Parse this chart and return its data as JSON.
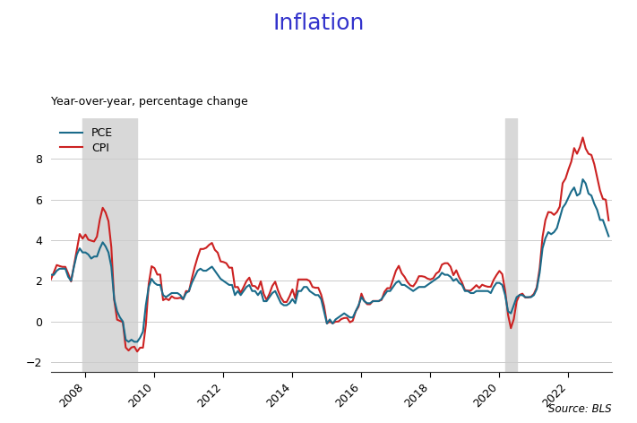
{
  "title": "Inflation",
  "subtitle": "Year-over-year, percentage change",
  "source": "Source: BLS",
  "title_color": "#3333cc",
  "recession1_start": 2007.917,
  "recession1_end": 2009.5,
  "recession2_start": 2020.167,
  "recession2_end": 2020.5,
  "ylim": [
    -2.5,
    10.0
  ],
  "yticks": [
    -2,
    0,
    2,
    4,
    6,
    8
  ],
  "pce_color": "#1a6b8a",
  "cpi_color": "#cc2222",
  "legend_labels": [
    "PCE",
    "CPI"
  ],
  "xticks": [
    2008,
    2010,
    2012,
    2014,
    2016,
    2018,
    2020,
    2022
  ],
  "xmin": 2007.0,
  "xmax": 2023.25,
  "dates": [
    2007.0,
    2007.083,
    2007.167,
    2007.25,
    2007.333,
    2007.417,
    2007.5,
    2007.583,
    2007.667,
    2007.75,
    2007.833,
    2007.917,
    2008.0,
    2008.083,
    2008.167,
    2008.25,
    2008.333,
    2008.417,
    2008.5,
    2008.583,
    2008.667,
    2008.75,
    2008.833,
    2008.917,
    2009.0,
    2009.083,
    2009.167,
    2009.25,
    2009.333,
    2009.417,
    2009.5,
    2009.583,
    2009.667,
    2009.75,
    2009.833,
    2009.917,
    2010.0,
    2010.083,
    2010.167,
    2010.25,
    2010.333,
    2010.417,
    2010.5,
    2010.583,
    2010.667,
    2010.75,
    2010.833,
    2010.917,
    2011.0,
    2011.083,
    2011.167,
    2011.25,
    2011.333,
    2011.417,
    2011.5,
    2011.583,
    2011.667,
    2011.75,
    2011.833,
    2011.917,
    2012.0,
    2012.083,
    2012.167,
    2012.25,
    2012.333,
    2012.417,
    2012.5,
    2012.583,
    2012.667,
    2012.75,
    2012.833,
    2012.917,
    2013.0,
    2013.083,
    2013.167,
    2013.25,
    2013.333,
    2013.417,
    2013.5,
    2013.583,
    2013.667,
    2013.75,
    2013.833,
    2013.917,
    2014.0,
    2014.083,
    2014.167,
    2014.25,
    2014.333,
    2014.417,
    2014.5,
    2014.583,
    2014.667,
    2014.75,
    2014.833,
    2014.917,
    2015.0,
    2015.083,
    2015.167,
    2015.25,
    2015.333,
    2015.417,
    2015.5,
    2015.583,
    2015.667,
    2015.75,
    2015.833,
    2015.917,
    2016.0,
    2016.083,
    2016.167,
    2016.25,
    2016.333,
    2016.417,
    2016.5,
    2016.583,
    2016.667,
    2016.75,
    2016.833,
    2016.917,
    2017.0,
    2017.083,
    2017.167,
    2017.25,
    2017.333,
    2017.417,
    2017.5,
    2017.583,
    2017.667,
    2017.75,
    2017.833,
    2017.917,
    2018.0,
    2018.083,
    2018.167,
    2018.25,
    2018.333,
    2018.417,
    2018.5,
    2018.583,
    2018.667,
    2018.75,
    2018.833,
    2018.917,
    2019.0,
    2019.083,
    2019.167,
    2019.25,
    2019.333,
    2019.417,
    2019.5,
    2019.583,
    2019.667,
    2019.75,
    2019.833,
    2019.917,
    2020.0,
    2020.083,
    2020.167,
    2020.25,
    2020.333,
    2020.417,
    2020.5,
    2020.583,
    2020.667,
    2020.75,
    2020.833,
    2020.917,
    2021.0,
    2021.083,
    2021.167,
    2021.25,
    2021.333,
    2021.417,
    2021.5,
    2021.583,
    2021.667,
    2021.75,
    2021.833,
    2021.917,
    2022.0,
    2022.083,
    2022.167,
    2022.25,
    2022.333,
    2022.417,
    2022.5,
    2022.583,
    2022.667,
    2022.75,
    2022.833,
    2022.917,
    2023.0,
    2023.083,
    2023.167
  ],
  "cpi": [
    2.08,
    2.42,
    2.78,
    2.73,
    2.69,
    2.69,
    2.36,
    1.97,
    2.76,
    3.54,
    4.31,
    4.08,
    4.28,
    4.03,
    3.98,
    3.94,
    4.18,
    5.02,
    5.6,
    5.37,
    4.94,
    3.66,
    1.07,
    0.09,
    0.03,
    -0.03,
    -1.28,
    -1.43,
    -1.28,
    -1.24,
    -1.48,
    -1.29,
    -1.29,
    -0.18,
    1.84,
    2.72,
    2.63,
    2.31,
    2.31,
    1.05,
    1.13,
    1.05,
    1.24,
    1.15,
    1.14,
    1.17,
    1.1,
    1.5,
    1.48,
    2.11,
    2.68,
    3.16,
    3.57,
    3.57,
    3.63,
    3.77,
    3.87,
    3.53,
    3.39,
    2.96,
    2.93,
    2.87,
    2.65,
    2.65,
    1.69,
    1.7,
    1.41,
    1.69,
    1.99,
    2.16,
    1.76,
    1.74,
    1.59,
    1.98,
    1.36,
    1.06,
    1.36,
    1.75,
    1.96,
    1.52,
    1.18,
    0.96,
    0.96,
    1.24,
    1.58,
    1.13,
    2.07,
    2.07,
    2.07,
    2.07,
    1.99,
    1.7,
    1.66,
    1.66,
    1.32,
    0.76,
    -0.09,
    -0.01,
    -0.09,
    -0.01,
    0.0,
    0.12,
    0.17,
    0.18,
    -0.04,
    0.04,
    0.5,
    0.73,
    1.37,
    1.02,
    0.85,
    0.85,
    1.01,
    1.01,
    1.01,
    1.06,
    1.46,
    1.64,
    1.64,
    2.07,
    2.5,
    2.74,
    2.38,
    2.2,
    1.95,
    1.78,
    1.73,
    1.93,
    2.23,
    2.23,
    2.2,
    2.11,
    2.07,
    2.13,
    2.36,
    2.46,
    2.8,
    2.87,
    2.87,
    2.7,
    2.28,
    2.52,
    2.18,
    1.91,
    1.55,
    1.52,
    1.52,
    1.65,
    1.79,
    1.65,
    1.81,
    1.75,
    1.71,
    1.71,
    2.05,
    2.29,
    2.49,
    2.33,
    1.5,
    0.33,
    -0.33,
    0.12,
    0.99,
    1.31,
    1.37,
    1.18,
    1.18,
    1.22,
    1.36,
    1.68,
    2.62,
    4.16,
    4.99,
    5.39,
    5.37,
    5.25,
    5.39,
    5.66,
    6.81,
    7.04,
    7.48,
    7.87,
    8.54,
    8.26,
    8.58,
    9.06,
    8.52,
    8.26,
    8.2,
    7.75,
    7.11,
    6.45,
    6.04,
    6.0,
    4.98
  ],
  "pce": [
    2.3,
    2.3,
    2.5,
    2.6,
    2.6,
    2.6,
    2.2,
    2.0,
    2.7,
    3.3,
    3.6,
    3.4,
    3.4,
    3.3,
    3.1,
    3.2,
    3.2,
    3.6,
    3.9,
    3.7,
    3.4,
    2.7,
    1.1,
    0.5,
    0.2,
    0.0,
    -0.9,
    -1.0,
    -0.9,
    -1.0,
    -1.0,
    -0.8,
    -0.5,
    0.8,
    1.7,
    2.1,
    1.9,
    1.8,
    1.8,
    1.3,
    1.2,
    1.3,
    1.4,
    1.4,
    1.4,
    1.3,
    1.1,
    1.4,
    1.5,
    1.9,
    2.2,
    2.5,
    2.6,
    2.5,
    2.5,
    2.6,
    2.7,
    2.5,
    2.3,
    2.1,
    2.0,
    1.9,
    1.8,
    1.8,
    1.3,
    1.5,
    1.3,
    1.5,
    1.7,
    1.8,
    1.5,
    1.5,
    1.3,
    1.5,
    1.0,
    1.0,
    1.2,
    1.4,
    1.5,
    1.2,
    0.9,
    0.8,
    0.8,
    0.9,
    1.1,
    0.9,
    1.5,
    1.5,
    1.7,
    1.7,
    1.5,
    1.4,
    1.3,
    1.3,
    1.1,
    0.5,
    -0.1,
    0.1,
    -0.1,
    0.1,
    0.2,
    0.3,
    0.4,
    0.3,
    0.2,
    0.2,
    0.5,
    0.8,
    1.2,
    1.0,
    0.9,
    0.9,
    1.0,
    1.0,
    1.0,
    1.1,
    1.3,
    1.5,
    1.5,
    1.7,
    1.9,
    2.0,
    1.8,
    1.8,
    1.7,
    1.6,
    1.5,
    1.6,
    1.7,
    1.7,
    1.7,
    1.8,
    1.9,
    2.0,
    2.1,
    2.2,
    2.4,
    2.3,
    2.3,
    2.2,
    2.0,
    2.1,
    1.9,
    1.8,
    1.5,
    1.5,
    1.4,
    1.4,
    1.5,
    1.5,
    1.5,
    1.5,
    1.5,
    1.4,
    1.7,
    1.9,
    1.9,
    1.8,
    1.3,
    0.5,
    0.4,
    0.8,
    1.2,
    1.3,
    1.3,
    1.2,
    1.2,
    1.2,
    1.3,
    1.6,
    2.4,
    3.6,
    4.1,
    4.4,
    4.3,
    4.4,
    4.6,
    5.1,
    5.6,
    5.8,
    6.1,
    6.4,
    6.6,
    6.2,
    6.3,
    7.0,
    6.8,
    6.3,
    6.2,
    5.8,
    5.5,
    5.0,
    5.0,
    4.6,
    4.2
  ]
}
